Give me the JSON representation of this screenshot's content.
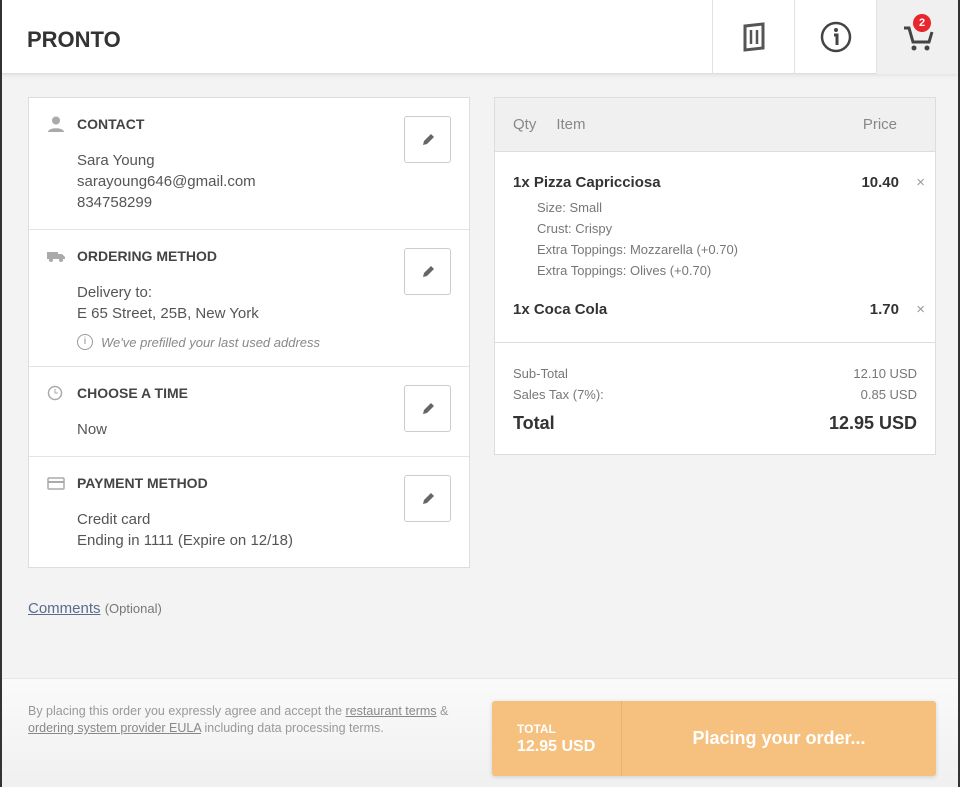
{
  "header": {
    "brand": "PRONTO",
    "cart_count": "2"
  },
  "contact": {
    "title": "CONTACT",
    "name": "Sara Young",
    "email": "sarayoung646@gmail.com",
    "phone": "834758299"
  },
  "ordering": {
    "title": "ORDERING METHOD",
    "label": "Delivery to:",
    "address": "E 65 Street, 25B, New York",
    "note": "We've prefilled your last used address"
  },
  "time": {
    "title": "CHOOSE A TIME",
    "value": "Now"
  },
  "payment": {
    "title": "PAYMENT METHOD",
    "method": "Credit card",
    "detail": "Ending in 1111 (Expire on 12/18)"
  },
  "comments": {
    "link": "Comments",
    "hint": "(Optional)"
  },
  "cart": {
    "headers": {
      "qty": "Qty",
      "item": "Item",
      "price": "Price"
    },
    "items": [
      {
        "name": "1x Pizza Capricciosa",
        "price": "10.40",
        "options": [
          "Size: Small",
          "Crust: Crispy",
          "Extra Toppings: Mozzarella (+0.70)",
          "Extra Toppings: Olives (+0.70)"
        ]
      },
      {
        "name": "1x Coca Cola",
        "price": "1.70",
        "options": []
      }
    ],
    "subtotal_label": "Sub-Total",
    "subtotal": "12.10 USD",
    "tax_label": "Sales Tax (7%):",
    "tax": "0.85 USD",
    "total_label": "Total",
    "total": "12.95 USD"
  },
  "footer": {
    "terms_pre": "By placing this order you expressly agree and accept the ",
    "terms_link1": "restaurant terms",
    "terms_mid": " & ",
    "terms_link2": "ordering system provider EULA",
    "terms_post": " including data processing terms.",
    "total_label": "TOTAL",
    "total": "12.95 USD",
    "button": "Placing your order..."
  },
  "colors": {
    "accent": "#f6c07f",
    "badge": "#e8262b"
  }
}
